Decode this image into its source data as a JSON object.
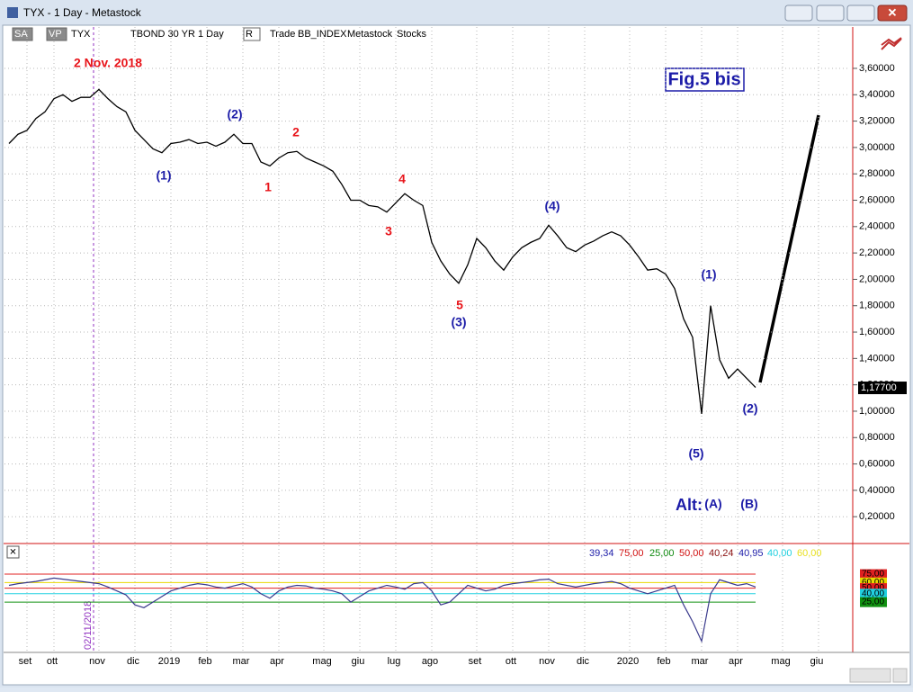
{
  "window": {
    "title": "TYX - 1 Day - Metastock"
  },
  "toolbar": {
    "items": [
      "SA",
      "VP",
      "TYX",
      "TBOND 30 YR",
      "1 Day",
      "R",
      "Trade",
      "BB_INDEX",
      "Metastock",
      "Stocks"
    ]
  },
  "chart_data": [
    {
      "type": "line",
      "title": "Fig.5 bis",
      "categories": [
        null,
        null,
        "set",
        null,
        null,
        "ott",
        null,
        null,
        null,
        null,
        "nov",
        null,
        null,
        null,
        "dic",
        null,
        null,
        null,
        "2019",
        null,
        null,
        null,
        "feb",
        null,
        null,
        null,
        "mar",
        null,
        null,
        null,
        "apr",
        null,
        null,
        null,
        null,
        "mag",
        null,
        null,
        null,
        "giu",
        null,
        null,
        null,
        "lug",
        null,
        null,
        null,
        "ago",
        null,
        null,
        null,
        null,
        "set",
        null,
        null,
        null,
        "ott",
        null,
        null,
        null,
        "nov",
        null,
        null,
        null,
        "dic",
        null,
        null,
        null,
        null,
        "2020",
        null,
        null,
        null,
        "feb",
        null,
        null,
        null,
        "mar",
        null,
        null,
        null,
        "apr",
        null,
        null,
        null,
        null,
        "mag",
        null,
        null,
        null,
        "giu",
        null,
        null,
        null
      ],
      "series": [
        {
          "name": "TYX",
          "color": "#000000",
          "values": [
            3.03,
            3.1,
            3.13,
            3.22,
            3.27,
            3.37,
            3.4,
            3.35,
            3.38,
            3.38,
            3.44,
            3.37,
            3.31,
            3.27,
            3.13,
            3.06,
            2.99,
            2.96,
            3.03,
            3.04,
            3.06,
            3.03,
            3.04,
            3.01,
            3.04,
            3.1,
            3.03,
            3.03,
            2.89,
            2.86,
            2.92,
            2.96,
            2.97,
            2.92,
            2.89,
            2.86,
            2.82,
            2.72,
            2.6,
            2.6,
            2.56,
            2.55,
            2.51,
            2.58,
            2.65,
            2.6,
            2.56,
            2.28,
            2.14,
            2.04,
            1.97,
            2.11,
            2.31,
            2.24,
            2.14,
            2.07,
            2.17,
            2.24,
            2.28,
            2.31,
            2.41,
            2.33,
            2.24,
            2.21,
            2.26,
            2.29,
            2.33,
            2.36,
            2.33,
            2.26,
            2.17,
            2.07,
            2.08,
            2.04,
            1.93,
            1.7,
            1.56,
            0.98,
            1.8,
            1.39,
            1.25,
            1.32,
            1.25,
            1.18,
            null,
            null,
            null,
            null,
            null,
            null,
            null,
            null,
            null,
            null
          ]
        }
      ],
      "ylim": [
        0,
        3.9
      ],
      "yticks": [
        {
          "value": 0.2,
          "label": "0,20000"
        },
        {
          "value": 0.4,
          "label": "0,40000"
        },
        {
          "value": 0.6,
          "label": "0,60000"
        },
        {
          "value": 0.8,
          "label": "0,80000"
        },
        {
          "value": 1.0,
          "label": "1,00000"
        },
        {
          "value": 1.2,
          "label": "1,20000"
        },
        {
          "value": 1.4,
          "label": "1,40000"
        },
        {
          "value": 1.6,
          "label": "1,60000"
        },
        {
          "value": 1.8,
          "label": "1,80000"
        },
        {
          "value": 2.0,
          "label": "2,00000"
        },
        {
          "value": 2.2,
          "label": "2,20000"
        },
        {
          "value": 2.4,
          "label": "2,40000"
        },
        {
          "value": 2.6,
          "label": "2,60000"
        },
        {
          "value": 2.8,
          "label": "2,80000"
        },
        {
          "value": 3.0,
          "label": "3,00000"
        },
        {
          "value": 3.2,
          "label": "3,20000"
        },
        {
          "value": 3.4,
          "label": "3,40000"
        },
        {
          "value": 3.6,
          "label": "3,60000"
        }
      ],
      "grid": true,
      "last_price": {
        "value": 1.177,
        "label": "1,17700"
      },
      "date_marker": "02/11/2018",
      "annotations": [
        {
          "text": "2 Nov. 2018",
          "color": "#e8141a"
        },
        {
          "text": "(1)",
          "color": "#1c1ca8"
        },
        {
          "text": "(2)",
          "color": "#1c1ca8"
        },
        {
          "text": "1",
          "color": "#e8141a"
        },
        {
          "text": "2",
          "color": "#e8141a"
        },
        {
          "text": "3",
          "color": "#e8141a"
        },
        {
          "text": "4",
          "color": "#e8141a"
        },
        {
          "text": "5",
          "color": "#e8141a"
        },
        {
          "text": "(3)",
          "color": "#1c1ca8"
        },
        {
          "text": "(4)",
          "color": "#1c1ca8"
        },
        {
          "text": "(1)",
          "color": "#1c1ca8"
        },
        {
          "text": "(5)",
          "color": "#1c1ca8"
        },
        {
          "text": "(2)",
          "color": "#1c1ca8"
        },
        {
          "text": "Alt:",
          "color": "#1c1ca8"
        },
        {
          "text": "(A)",
          "color": "#1c1ca8"
        },
        {
          "text": "(B)",
          "color": "#1c1ca8"
        }
      ]
    },
    {
      "type": "line",
      "values": [
        55,
        58,
        60,
        62,
        65,
        68,
        66,
        64,
        62,
        60,
        58,
        52,
        45,
        38,
        20,
        15,
        25,
        35,
        45,
        50,
        55,
        58,
        56,
        52,
        50,
        54,
        58,
        52,
        40,
        32,
        45,
        52,
        55,
        54,
        50,
        48,
        45,
        40,
        25,
        35,
        45,
        50,
        55,
        52,
        48,
        58,
        60,
        45,
        20,
        25,
        40,
        55,
        50,
        45,
        48,
        55,
        58,
        60,
        62,
        65,
        66,
        58,
        55,
        52,
        55,
        58,
        60,
        62,
        58,
        50,
        45,
        40,
        45,
        50,
        55,
        20,
        -10,
        -45,
        40,
        65,
        60,
        55,
        58,
        52,
        null,
        null,
        null,
        null,
        null,
        null,
        null,
        null,
        null,
        null
      ],
      "color": "#3a3a8c",
      "ylim": [
        -65,
        125
      ],
      "readouts": [
        {
          "text": "39,34",
          "color": "#1c1ca8"
        },
        {
          "text": "75,00",
          "color": "#d01010"
        },
        {
          "text": "25,00",
          "color": "#108a10"
        },
        {
          "text": "50,00",
          "color": "#d01010"
        },
        {
          "text": "40,24",
          "color": "#8a1010"
        },
        {
          "text": "40,95",
          "color": "#1c1ca8"
        },
        {
          "text": "40,00",
          "color": "#20d0e0"
        },
        {
          "text": "60,00",
          "color": "#e8e020"
        }
      ],
      "levels": [
        {
          "value": 75,
          "label": "75,00",
          "color": "#e02020"
        },
        {
          "value": 60,
          "label": "60,00",
          "color": "#e8d800"
        },
        {
          "value": 50,
          "label": "50,00",
          "color": "#e02020"
        },
        {
          "value": 40,
          "label": "40,00",
          "color": "#20d0e0"
        },
        {
          "value": 25,
          "label": "25,00",
          "color": "#109010"
        }
      ]
    }
  ]
}
